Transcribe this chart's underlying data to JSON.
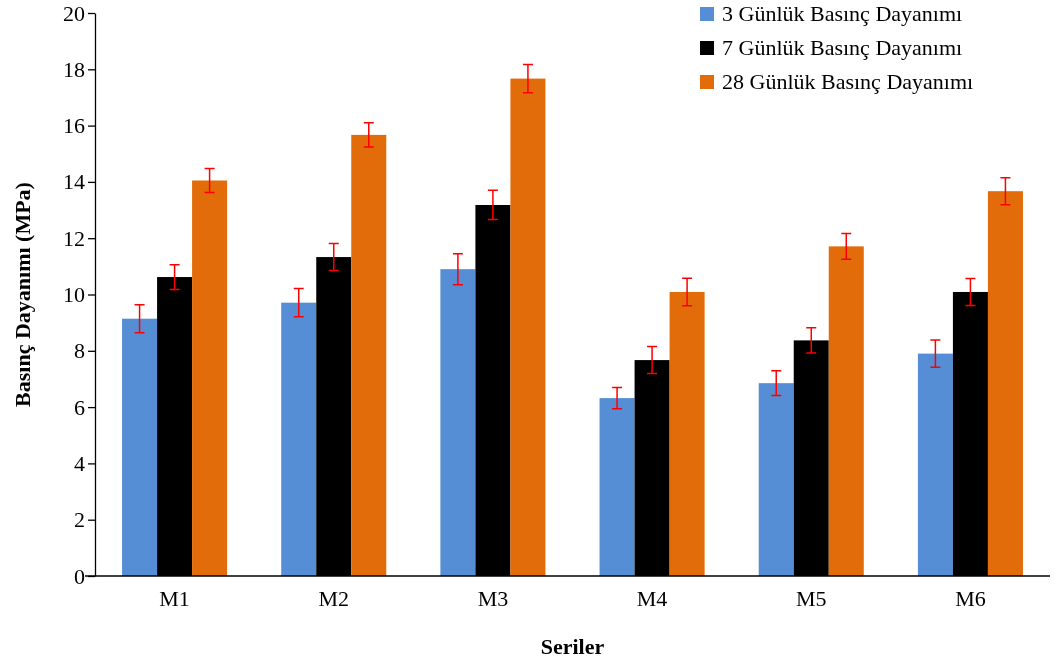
{
  "chart_data": {
    "type": "bar",
    "xlabel": "Seriler",
    "ylabel": "Basınç Dayanımı (MPa)",
    "categories": [
      "M1",
      "M2",
      "M3",
      "M4",
      "M5",
      "M6"
    ],
    "series": [
      {
        "name": "3 Günlük Basınç Dayanımı",
        "color": "#558ed5",
        "values": [
          9.14,
          9.71,
          10.9,
          6.32,
          6.85,
          7.9
        ],
        "errors": [
          0.5,
          0.5,
          0.55,
          0.38,
          0.44,
          0.48
        ]
      },
      {
        "name": "7 Günlük Basınç Dayanımı",
        "color": "#000000",
        "values": [
          10.62,
          11.33,
          13.18,
          7.67,
          8.37,
          10.09
        ],
        "errors": [
          0.44,
          0.48,
          0.52,
          0.48,
          0.45,
          0.48
        ]
      },
      {
        "name": "28 Günlük Basınç Dayanımı",
        "color": "#e36c0a",
        "values": [
          14.05,
          15.67,
          17.67,
          10.09,
          11.71,
          13.67
        ],
        "errors": [
          0.43,
          0.43,
          0.5,
          0.49,
          0.46,
          0.48
        ]
      }
    ],
    "ylim": [
      0,
      20
    ],
    "yticks": [
      0,
      2,
      4,
      6,
      8,
      10,
      12,
      14,
      16,
      18,
      20
    ],
    "grid": false,
    "legend": "top right"
  }
}
